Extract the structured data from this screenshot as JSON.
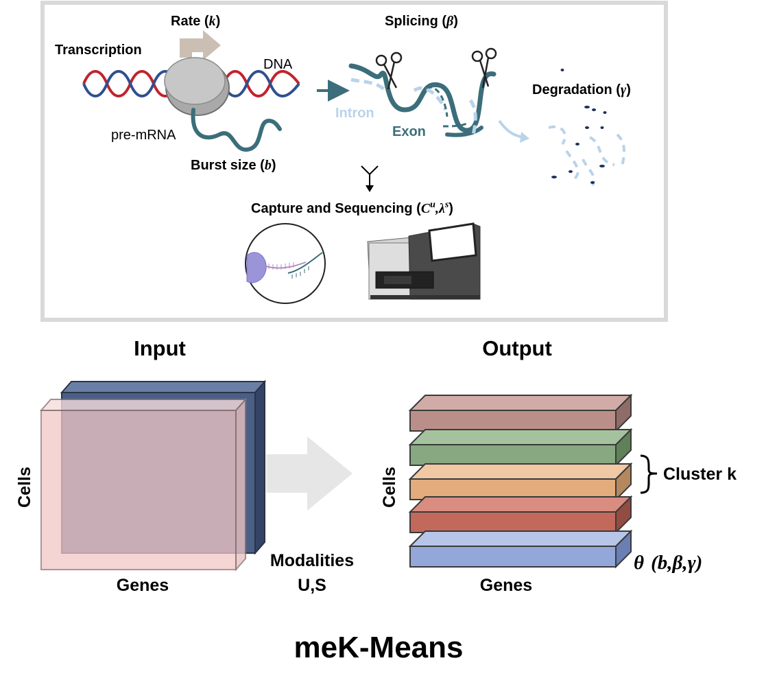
{
  "process": {
    "transcription": "Transcription",
    "rate_label": "Rate (",
    "rate_symbol": "k",
    "close_paren": ")",
    "dna": "DNA",
    "pre_mrna": "pre-mRNA",
    "burst_label": "Burst size (",
    "burst_symbol": "b",
    "splicing_label": "Splicing (",
    "splicing_symbol": "β",
    "intron": "Intron",
    "exon": "Exon",
    "degradation_label": "Degradation (",
    "degradation_symbol": "γ",
    "capture_label": "Capture and Sequencing (",
    "capture_c": "C",
    "capture_u": "u",
    "capture_comma": ",",
    "capture_lambda": "λ",
    "capture_s": "s"
  },
  "input": {
    "title": "Input",
    "y_label": "Cells",
    "x_label": "Genes",
    "modalities_line1": "Modalities",
    "modalities_line2": "U,S"
  },
  "output": {
    "title": "Output",
    "y_label": "Cells",
    "x_label": "Genes",
    "cluster_label": "Cluster k",
    "theta_symbol": "θ",
    "theta_params": "(b,β,γ)"
  },
  "footer_title": "meK-Means",
  "colors": {
    "dna_red": "#c0242c",
    "dna_blue": "#2f4f8f",
    "rna_teal": "#3b6e7a",
    "intron_light": "#b9d3ea",
    "slab_top_brown": "#bb8f89",
    "slab_green": "#87a880",
    "slab_orange": "#e3ac7c",
    "slab_red": "#c2695c",
    "slab_blue": "#93a8d8",
    "input_front": "#f2c6c6",
    "input_back": "#4a5f86"
  }
}
